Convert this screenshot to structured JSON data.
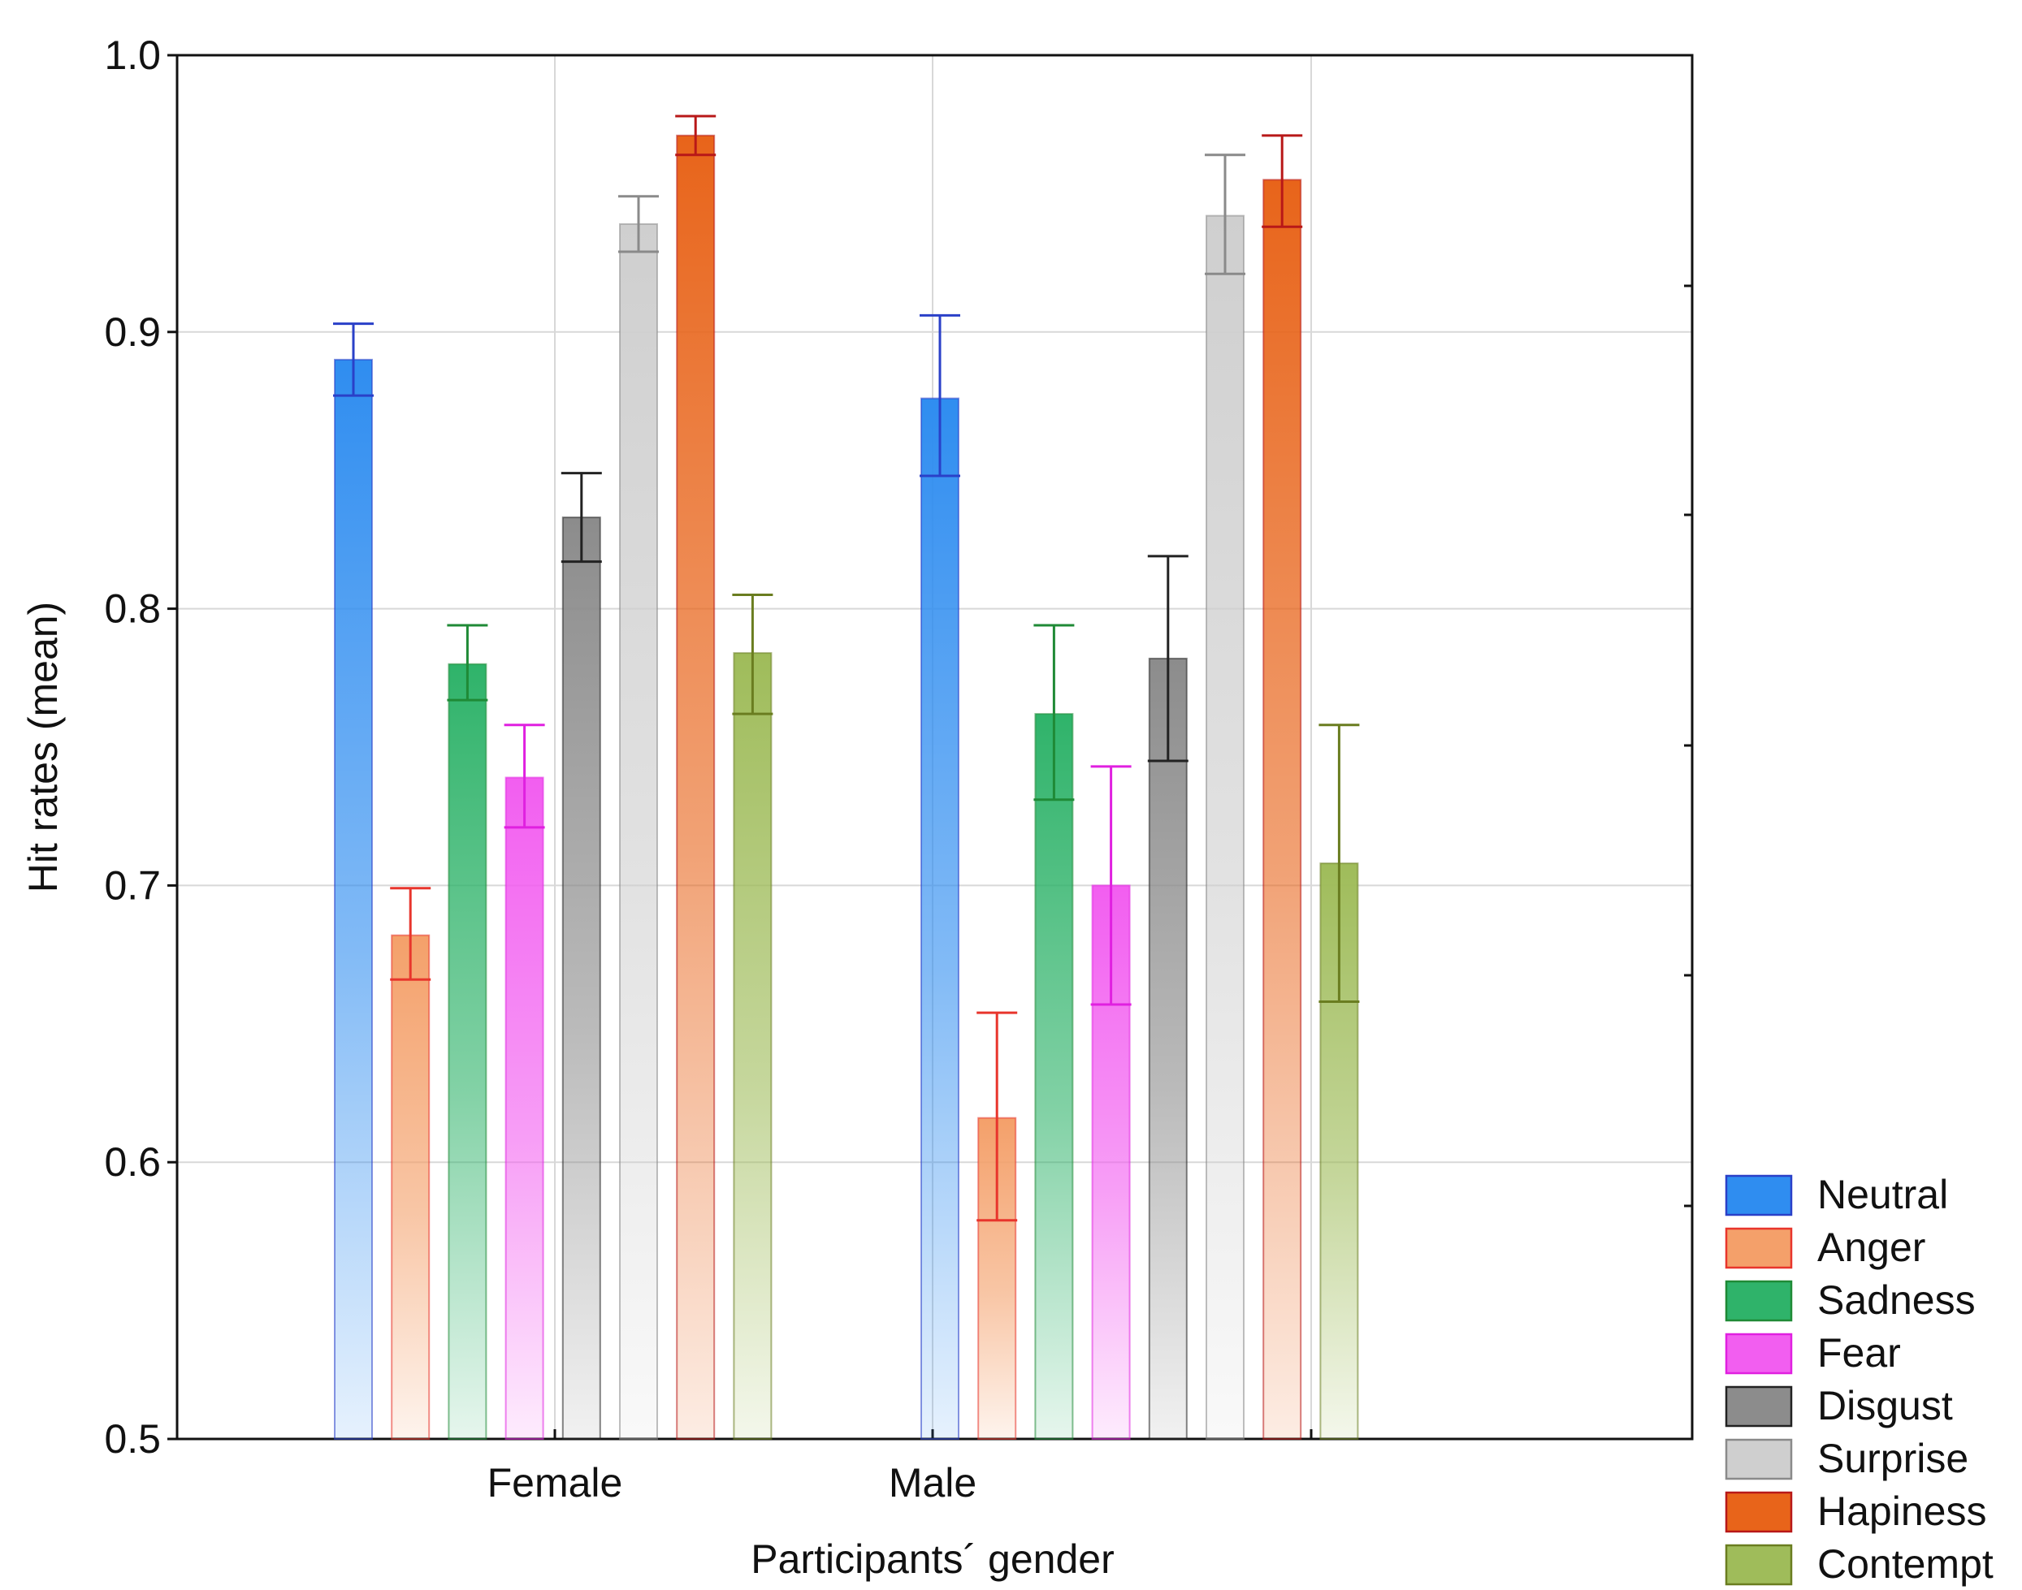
{
  "chart_data": {
    "type": "bar",
    "title": "",
    "xlabel": "Participants´ gender",
    "ylabel": "Hit rates (mean)",
    "ylim": [
      0.5,
      1.0
    ],
    "yticks": [
      "0.5",
      "0.6",
      "0.7",
      "0.8",
      "0.9",
      "1.0"
    ],
    "grid": true,
    "legend_position": "bottom-right outside",
    "categories": [
      "Female",
      "Male"
    ],
    "series": [
      {
        "name": "Neutral",
        "color": "#2f8df0",
        "edge": "#2a40c8",
        "values": [
          0.89,
          0.876
        ],
        "err_low": [
          0.877,
          0.848
        ],
        "err_high": [
          0.903,
          0.906
        ]
      },
      {
        "name": "Anger",
        "color": "#f4a06a",
        "edge": "#e8352c",
        "values": [
          0.682,
          0.616
        ],
        "err_low": [
          0.666,
          0.579
        ],
        "err_high": [
          0.699,
          0.654
        ]
      },
      {
        "name": "Sadness",
        "color": "#2fb36a",
        "edge": "#1f8a36",
        "values": [
          0.78,
          0.762
        ],
        "err_low": [
          0.767,
          0.731
        ],
        "err_high": [
          0.794,
          0.794
        ]
      },
      {
        "name": "Fear",
        "color": "#f25ef0",
        "edge": "#e020e0",
        "values": [
          0.739,
          0.7
        ],
        "err_low": [
          0.721,
          0.657
        ],
        "err_high": [
          0.758,
          0.743
        ]
      },
      {
        "name": "Disgust",
        "color": "#8c8c8c",
        "edge": "#222222",
        "values": [
          0.833,
          0.782
        ],
        "err_low": [
          0.817,
          0.745
        ],
        "err_high": [
          0.849,
          0.819
        ]
      },
      {
        "name": "Surprise",
        "color": "#cfcfcf",
        "edge": "#8a8a8a",
        "values": [
          0.939,
          0.942
        ],
        "err_low": [
          0.929,
          0.921
        ],
        "err_high": [
          0.949,
          0.964
        ]
      },
      {
        "name": "Hapiness",
        "color": "#e8641a",
        "edge": "#b81818",
        "values": [
          0.971,
          0.955
        ],
        "err_low": [
          0.964,
          0.938
        ],
        "err_high": [
          0.978,
          0.971
        ]
      },
      {
        "name": "Contempt",
        "color": "#9fbc5a",
        "edge": "#6a7d20",
        "values": [
          0.784,
          0.708
        ],
        "err_low": [
          0.762,
          0.658
        ],
        "err_high": [
          0.805,
          0.758
        ]
      }
    ]
  }
}
